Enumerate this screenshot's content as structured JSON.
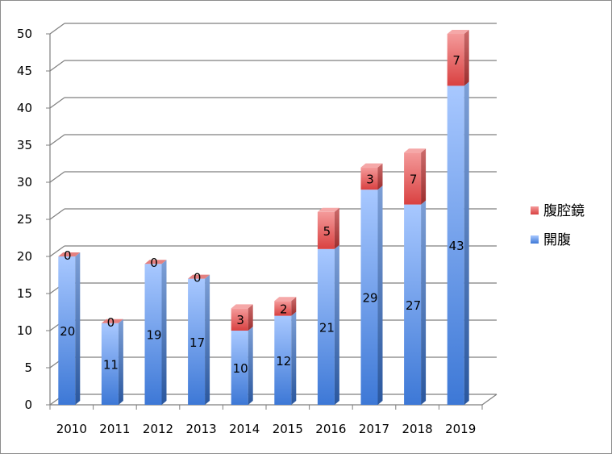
{
  "chart_data": {
    "type": "bar",
    "stacked": true,
    "categories": [
      "2010",
      "2011",
      "2012",
      "2013",
      "2014",
      "2015",
      "2016",
      "2017",
      "2018",
      "2019"
    ],
    "series": [
      {
        "name": "開腹",
        "values": [
          20,
          11,
          19,
          17,
          10,
          12,
          21,
          29,
          27,
          43
        ],
        "color": "#5b8fdc"
      },
      {
        "name": "腹腔鏡",
        "values": [
          0,
          0,
          0,
          0,
          3,
          2,
          5,
          3,
          7,
          7
        ],
        "color": "#e06060"
      }
    ],
    "ylim": [
      0,
      50
    ],
    "yticks": [
      0,
      5,
      10,
      15,
      20,
      25,
      30,
      35,
      40,
      45,
      50
    ],
    "legend": {
      "position": "right",
      "order": [
        "腹腔鏡",
        "開腹"
      ]
    },
    "grid": true,
    "style": "3d-column"
  }
}
